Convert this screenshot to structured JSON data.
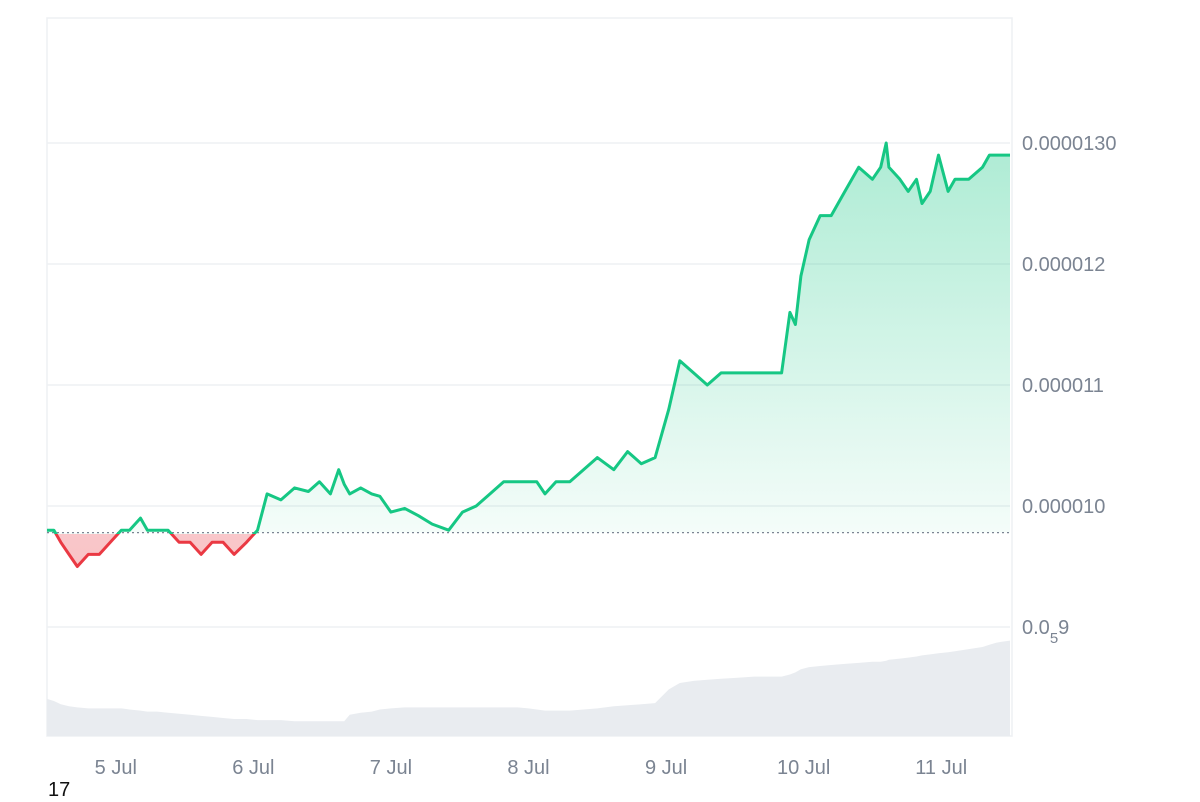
{
  "chart_data": {
    "type": "area",
    "y_scale": "linear",
    "ylim": [
      8.5e-06,
      1.4e-05
    ],
    "baseline": 9.78e-06,
    "y_ticks": [
      {
        "value": 1.3e-05,
        "label": "0.0000130"
      },
      {
        "value": 1.2e-05,
        "label": "0.000012"
      },
      {
        "value": 1.1e-05,
        "label": "0.000011"
      },
      {
        "value": 1e-05,
        "label": "0.000010"
      },
      {
        "value": 9e-06,
        "label": "0.0",
        "sub": "5",
        "suffix": "9"
      }
    ],
    "x_ticks": [
      "5 Jul",
      "6 Jul",
      "7 Jul",
      "8 Jul",
      "9 Jul",
      "10 Jul",
      "11 Jul"
    ],
    "x_tick_days": [
      5,
      6,
      7,
      8,
      9,
      10,
      11
    ],
    "xlim": [
      4.5,
      11.5
    ],
    "series": [
      {
        "x": [
          4.5,
          4.55,
          4.6,
          4.66,
          4.72,
          4.8,
          4.88,
          4.96,
          5.04,
          5.1,
          5.18,
          5.23,
          5.3,
          5.38,
          5.46,
          5.54,
          5.62,
          5.7,
          5.78,
          5.86,
          5.95,
          6.03,
          6.1,
          6.2,
          6.3,
          6.4,
          6.48,
          6.56,
          6.62,
          6.66,
          6.7,
          6.78,
          6.86,
          6.92,
          7.0,
          7.1,
          7.2,
          7.3,
          7.42,
          7.52,
          7.62,
          7.72,
          7.82,
          7.92,
          8.0,
          8.06,
          8.12,
          8.2,
          8.3,
          8.4,
          8.5,
          8.62,
          8.72,
          8.82,
          8.92,
          9.02,
          9.1,
          9.2,
          9.3,
          9.4,
          9.52,
          9.64,
          9.74,
          9.84,
          9.9,
          9.94,
          9.98,
          10.04,
          10.12,
          10.2,
          10.3,
          10.4,
          10.5,
          10.56,
          10.6,
          10.62,
          10.7,
          10.76,
          10.82,
          10.86,
          10.92,
          10.98,
          11.05,
          11.1,
          11.2,
          11.3,
          11.35,
          11.4,
          11.44,
          11.5
        ],
        "values": [
          9.8e-06,
          9.8e-06,
          9.7e-06,
          9.6e-06,
          9.5e-06,
          9.6e-06,
          9.6e-06,
          9.7e-06,
          9.8e-06,
          9.8e-06,
          9.9e-06,
          9.8e-06,
          9.8e-06,
          9.8e-06,
          9.7e-06,
          9.7e-06,
          9.6e-06,
          9.7e-06,
          9.7e-06,
          9.6e-06,
          9.7e-06,
          9.8e-06,
          1.01e-05,
          1.005e-05,
          1.015e-05,
          1.012e-05,
          1.02e-05,
          1.01e-05,
          1.03e-05,
          1.018e-05,
          1.01e-05,
          1.015e-05,
          1.01e-05,
          1.008e-05,
          9.95e-06,
          9.98e-06,
          9.92e-06,
          9.85e-06,
          9.8e-06,
          9.95e-06,
          1e-05,
          1.01e-05,
          1.02e-05,
          1.02e-05,
          1.02e-05,
          1.02e-05,
          1.01e-05,
          1.02e-05,
          1.02e-05,
          1.03e-05,
          1.04e-05,
          1.03e-05,
          1.045e-05,
          1.035e-05,
          1.04e-05,
          1.08e-05,
          1.12e-05,
          1.11e-05,
          1.1e-05,
          1.11e-05,
          1.11e-05,
          1.11e-05,
          1.11e-05,
          1.11e-05,
          1.16e-05,
          1.15e-05,
          1.19e-05,
          1.22e-05,
          1.24e-05,
          1.24e-05,
          1.26e-05,
          1.28e-05,
          1.27e-05,
          1.28e-05,
          1.3e-05,
          1.28e-05,
          1.27e-05,
          1.26e-05,
          1.27e-05,
          1.25e-05,
          1.26e-05,
          1.29e-05,
          1.26e-05,
          1.27e-05,
          1.27e-05,
          1.28e-05,
          1.29e-05,
          1.29e-05,
          1.29e-05,
          1.29e-05
        ],
        "volume": [
          0.35,
          0.33,
          0.3,
          0.28,
          0.27,
          0.26,
          0.26,
          0.26,
          0.26,
          0.25,
          0.24,
          0.23,
          0.23,
          0.22,
          0.21,
          0.2,
          0.19,
          0.18,
          0.17,
          0.16,
          0.16,
          0.15,
          0.15,
          0.15,
          0.14,
          0.14,
          0.14,
          0.14,
          0.14,
          0.14,
          0.2,
          0.22,
          0.23,
          0.25,
          0.26,
          0.27,
          0.27,
          0.27,
          0.27,
          0.27,
          0.27,
          0.27,
          0.27,
          0.27,
          0.26,
          0.25,
          0.24,
          0.24,
          0.24,
          0.25,
          0.26,
          0.28,
          0.29,
          0.3,
          0.31,
          0.44,
          0.5,
          0.52,
          0.53,
          0.54,
          0.55,
          0.56,
          0.56,
          0.56,
          0.58,
          0.6,
          0.63,
          0.65,
          0.66,
          0.67,
          0.68,
          0.69,
          0.7,
          0.7,
          0.71,
          0.72,
          0.73,
          0.74,
          0.75,
          0.76,
          0.77,
          0.78,
          0.79,
          0.8,
          0.82,
          0.84,
          0.86,
          0.88,
          0.89,
          0.9
        ]
      }
    ],
    "colors": {
      "up_line": "#16c784",
      "down_line": "#ea3943",
      "up_fill": "#16c784",
      "down_fill": "#ea3943",
      "volume": "#e9ecf0",
      "grid": "#eef0f3",
      "baseline": "#7b8492"
    },
    "grid": true
  },
  "footer": {
    "count": "17"
  }
}
